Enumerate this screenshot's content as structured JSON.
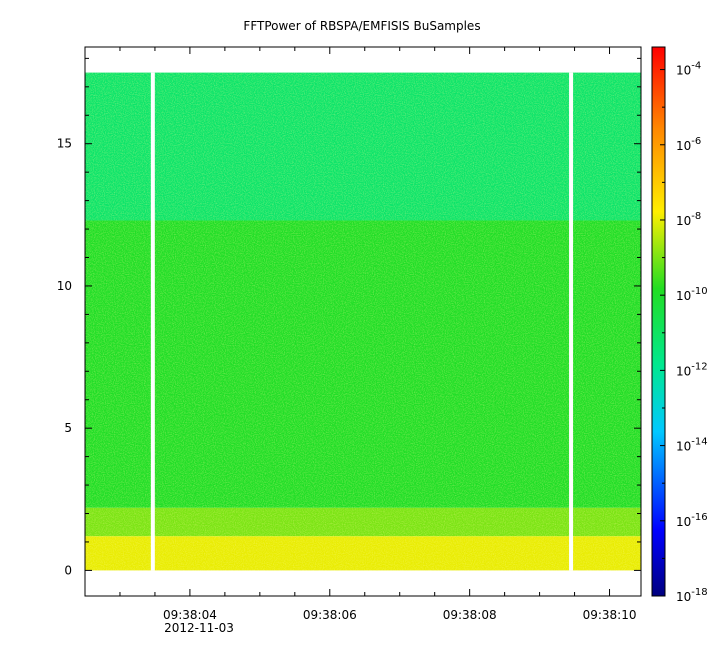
{
  "chart_data": {
    "type": "heatmap",
    "title": "FFTPower of RBSPA/EMFISIS  BuSamples",
    "xlabel": "",
    "ylabel": "",
    "x_ticks": [
      "09:38:04",
      "09:38:06",
      "09:38:08",
      "09:38:10"
    ],
    "x_tick_values": [
      4,
      6,
      8,
      10
    ],
    "x_date_label": "2012-11-03",
    "x_range": [
      2.5,
      10.45
    ],
    "y_ticks": [
      "0",
      "5",
      "10",
      "15"
    ],
    "y_tick_values": [
      0,
      5,
      10,
      15
    ],
    "y_range": [
      -0.9,
      18.4
    ],
    "data_y_range": [
      0,
      17.5
    ],
    "gaps_x": [
      3.47,
      9.45
    ],
    "colorbar": {
      "scale": "log",
      "range_exponents": [
        -18,
        -3.4
      ],
      "tick_exponents": [
        -18,
        -16,
        -14,
        -12,
        -10,
        -8,
        -6,
        -4
      ],
      "tick_base": "10"
    },
    "bands": [
      {
        "y_from": 12.3,
        "y_to": 17.5,
        "log_power": -11.3
      },
      {
        "y_from": 2.2,
        "y_to": 12.3,
        "log_power": -10.1
      },
      {
        "y_from": 1.2,
        "y_to": 2.2,
        "log_power": -9.2
      },
      {
        "y_from": 0.0,
        "y_to": 1.2,
        "log_power": -8.2
      }
    ],
    "grid": false
  }
}
